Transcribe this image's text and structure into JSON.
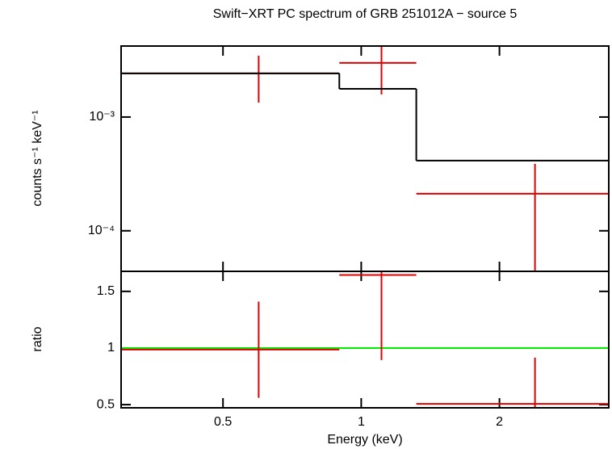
{
  "chart_data": [
    {
      "type": "step",
      "title": "Swift−XRT PC spectrum of GRB 251012A − source 5",
      "ylabel": "counts s⁻¹ keV⁻¹",
      "log_y": true,
      "log_x": true,
      "xlim": [
        0.3,
        3.46
      ],
      "ylim": [
        4.4e-05,
        0.00421
      ],
      "yticks": [
        {
          "value": 0.001,
          "label": "10⁻³"
        },
        {
          "value": 0.0001,
          "label": "10⁻⁴"
        }
      ],
      "bins": [
        0.3,
        0.896,
        1.318,
        3.46
      ],
      "x": [
        0.598,
        1.107,
        2.39
      ],
      "series": [
        {
          "color": "#e00000",
          "values": [
            0.00242,
            0.00299,
            0.000212
          ],
          "ylow": [
            0.00134,
            0.00158,
            4.4e-05
          ],
          "yhigh": [
            0.00346,
            0.0042,
            0.000388
          ]
        },
        {
          "color": "#000000",
          "values": [
            0.00242,
            0.00177,
            0.000414
          ]
        }
      ]
    },
    {
      "type": "ratio",
      "ylabel": "ratio",
      "xlabel": "Energy (keV)",
      "log_x": true,
      "xlim": [
        0.3,
        3.46
      ],
      "ylim": [
        0.472,
        1.677
      ],
      "xticks": [
        0.5,
        1,
        2
      ],
      "yticks": [
        0.5,
        1,
        1.5
      ],
      "reference": 1,
      "reference_color": "#00ee00",
      "bins": [
        0.3,
        0.896,
        1.318,
        3.46
      ],
      "x": [
        0.598,
        1.107,
        2.39
      ],
      "series": [
        {
          "color": "#e00000",
          "values": [
            0.986,
            1.645,
            0.507
          ],
          "ylow": [
            0.56,
            0.894,
            0.472
          ],
          "yhigh": [
            1.41,
            1.67,
            0.915
          ]
        }
      ]
    }
  ]
}
